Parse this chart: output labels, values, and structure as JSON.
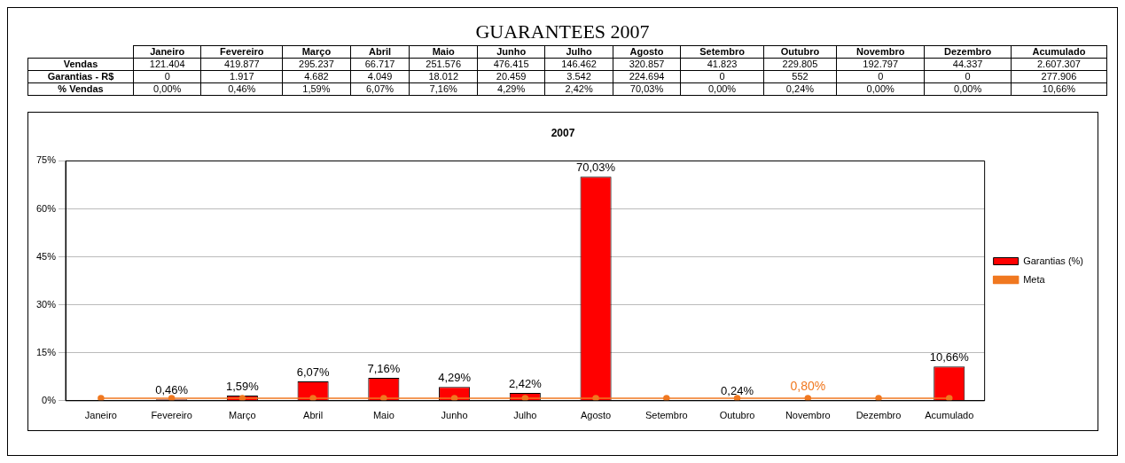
{
  "chart_data": [
    {
      "type": "other",
      "title": "GUARANTEES 2007",
      "categories": [
        "Janeiro",
        "Fevereiro",
        "Março",
        "Abril",
        "Maio",
        "Junho",
        "Julho",
        "Agosto",
        "Setembro",
        "Outubro",
        "Novembro",
        "Dezembro",
        "Acumulado"
      ],
      "series": [
        {
          "name": "Vendas",
          "values": [
            121404,
            419877,
            295237,
            66717,
            251576,
            476415,
            146462,
            320857,
            41823,
            229805,
            192797,
            44337,
            2607307
          ],
          "value_labels": [
            "121.404",
            "419.877",
            "295.237",
            "66.717",
            "251.576",
            "476.415",
            "146.462",
            "320.857",
            "41.823",
            "229.805",
            "192.797",
            "44.337",
            "2.607.307"
          ]
        },
        {
          "name": "Garantias - R$",
          "values": [
            0,
            1917,
            4682,
            4049,
            18012,
            20459,
            3542,
            224694,
            0,
            552,
            0,
            0,
            277906
          ],
          "value_labels": [
            "0",
            "1.917",
            "4.682",
            "4.049",
            "18.012",
            "20.459",
            "3.542",
            "224.694",
            "0",
            "552",
            "0",
            "0",
            "277.906"
          ]
        },
        {
          "name": "% Vendas",
          "values": [
            0,
            0.46,
            1.59,
            6.07,
            7.16,
            4.29,
            2.42,
            70.03,
            0,
            0.24,
            0,
            0,
            10.66
          ],
          "value_labels": [
            "0,00%",
            "0,46%",
            "1,59%",
            "6,07%",
            "7,16%",
            "4,29%",
            "2,42%",
            "70,03%",
            "0,00%",
            "0,24%",
            "0,00%",
            "0,00%",
            "10,66%"
          ]
        }
      ]
    },
    {
      "type": "bar",
      "title": "2007",
      "categories": [
        "Janeiro",
        "Fevereiro",
        "Março",
        "Abril",
        "Maio",
        "Junho",
        "Julho",
        "Agosto",
        "Setembro",
        "Outubro",
        "Novembro",
        "Dezembro",
        "Acumulado"
      ],
      "series": [
        {
          "name": "Garantias (%)",
          "color": "#ff0000",
          "values": [
            0,
            0.46,
            1.59,
            6.07,
            7.16,
            4.29,
            2.42,
            70.03,
            0,
            0.24,
            0,
            0,
            10.66
          ],
          "value_labels": [
            null,
            "0,46%",
            "1,59%",
            "6,07%",
            "7,16%",
            "4,29%",
            "2,42%",
            "70,03%",
            null,
            "0,24%",
            null,
            null,
            "10,66%"
          ]
        },
        {
          "name": "Meta",
          "type": "line",
          "color": "#f07820",
          "values": [
            0.8,
            0.8,
            0.8,
            0.8,
            0.8,
            0.8,
            0.8,
            0.8,
            0.8,
            0.8,
            0.8,
            0.8,
            0.8
          ],
          "value_labels": [
            null,
            null,
            null,
            null,
            null,
            null,
            null,
            null,
            null,
            null,
            "0,80%",
            null,
            null
          ]
        }
      ],
      "ylim": [
        0,
        75
      ],
      "yticks": [
        {
          "value": 0,
          "label": "0%"
        },
        {
          "value": 15,
          "label": "15%"
        },
        {
          "value": 30,
          "label": "30%"
        },
        {
          "value": 45,
          "label": "45%"
        },
        {
          "value": 60,
          "label": "60%"
        },
        {
          "value": 75,
          "label": "75%"
        }
      ],
      "grid": "y",
      "legend": "right",
      "marker": "circle",
      "line_style": "solid"
    }
  ]
}
